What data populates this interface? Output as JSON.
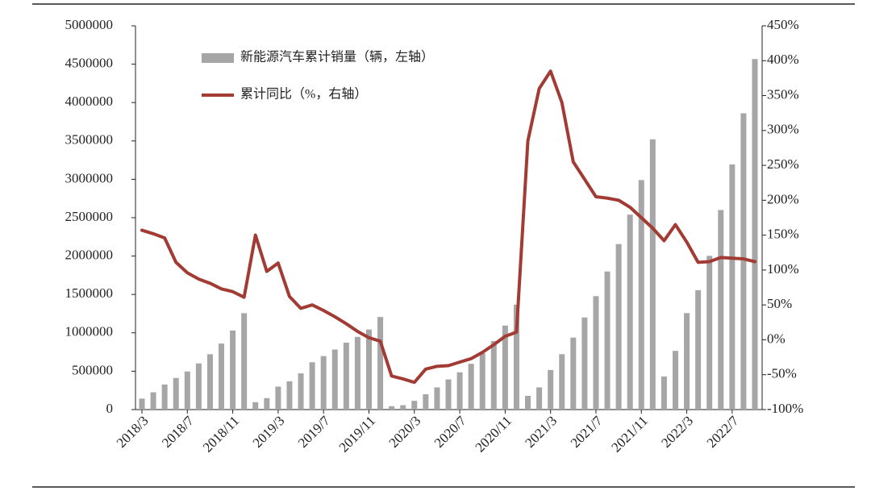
{
  "chart_data": {
    "type": "bar_line",
    "categories": [
      "2018/3",
      null,
      null,
      null,
      "2018/7",
      null,
      null,
      null,
      "2018/11",
      null,
      null,
      null,
      "2019/3",
      null,
      null,
      null,
      "2019/7",
      null,
      null,
      null,
      "2019/11",
      null,
      null,
      null,
      "2020/3",
      null,
      null,
      null,
      "2020/7",
      null,
      null,
      null,
      "2020/11",
      null,
      null,
      null,
      "2021/3",
      null,
      null,
      null,
      "2021/7",
      null,
      null,
      null,
      "2021/11",
      null,
      null,
      null,
      "2022/3",
      null,
      null,
      null,
      "2022/7",
      null,
      null
    ],
    "series": [
      {
        "name": "新能源汽车累计销量（辆，左轴）",
        "type": "bar",
        "color": "#a6a6a6",
        "values": [
          143000,
          225000,
          327000,
          412000,
          496000,
          601000,
          721000,
          860000,
          1030000,
          1256000,
          96000,
          149000,
          299000,
          368000,
          472000,
          617000,
          697000,
          782000,
          872000,
          947000,
          1043000,
          1206000,
          44000,
          57000,
          114000,
          200000,
          289000,
          393000,
          486000,
          596000,
          734000,
          894000,
          1094000,
          1367000,
          179000,
          289000,
          515000,
          721000,
          938000,
          1200000,
          1478000,
          1799000,
          2156000,
          2540000,
          2990000,
          3521000,
          431000,
          765000,
          1257000,
          1556000,
          2003000,
          2600000,
          3194000,
          3860000,
          4567000
        ]
      },
      {
        "name": "累计同比（%，右轴）",
        "type": "line",
        "axis": "y2",
        "color": "#a33b35",
        "values": [
          157,
          152,
          146,
          111,
          96,
          87,
          81,
          73,
          69,
          61,
          150,
          98,
          110,
          62,
          45,
          50,
          42,
          33,
          23,
          12,
          3,
          -2,
          -52,
          -56,
          -61,
          -42,
          -38,
          -37,
          -32,
          -27,
          -18,
          -7,
          5,
          11,
          285,
          360,
          385,
          340,
          255,
          230,
          205,
          203,
          200,
          190,
          175,
          160,
          142,
          165,
          140,
          111,
          112,
          118,
          117,
          116,
          112
        ]
      }
    ],
    "ylim": [
      0,
      5000000
    ],
    "yticks": [
      0,
      500000,
      1000000,
      1500000,
      2000000,
      2500000,
      3000000,
      3500000,
      4000000,
      4500000,
      5000000
    ],
    "y2lim": [
      -100,
      450
    ],
    "y2ticks": [
      {
        "value": -100,
        "label": "-100%"
      },
      {
        "value": -50,
        "label": "-50%"
      },
      {
        "value": 0,
        "label": "0%"
      },
      {
        "value": 50,
        "label": "50%"
      },
      {
        "value": 100,
        "label": "100%"
      },
      {
        "value": 150,
        "label": "150%"
      },
      {
        "value": 200,
        "label": "200%"
      },
      {
        "value": 250,
        "label": "250%"
      },
      {
        "value": 300,
        "label": "300%"
      },
      {
        "value": 350,
        "label": "350%"
      },
      {
        "value": 400,
        "label": "400%"
      },
      {
        "value": 450,
        "label": "450%"
      }
    ],
    "legend": "top-left"
  }
}
